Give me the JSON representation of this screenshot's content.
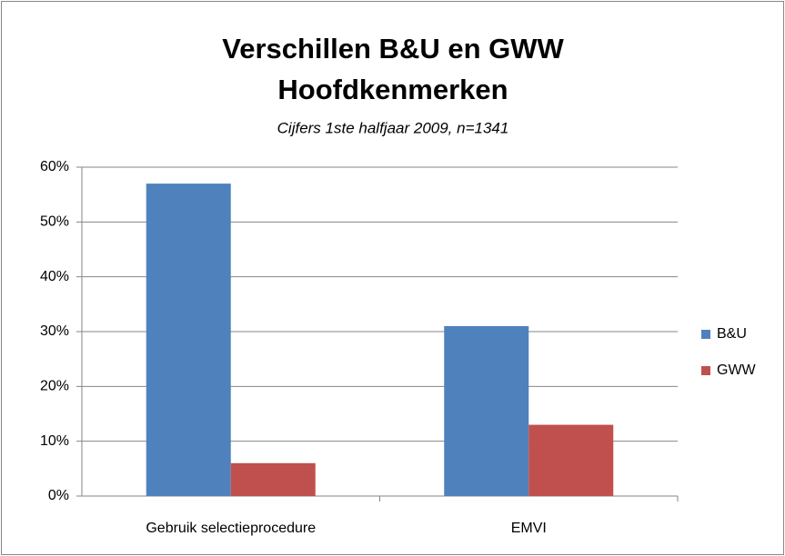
{
  "chart_data": {
    "type": "bar",
    "title": [
      "Verschillen B&U en GWW",
      "Hoofdkenmerken"
    ],
    "subtitle": "Cijfers 1ste halfjaar 2009, n=1341",
    "categories": [
      "Gebruik selectieprocedure",
      "EMVI"
    ],
    "series": [
      {
        "name": "B&U",
        "color": "#4f81bd",
        "values": [
          57,
          31
        ]
      },
      {
        "name": "GWW",
        "color": "#c0504d",
        "values": [
          6,
          13
        ]
      }
    ],
    "ylim": [
      0,
      60
    ],
    "yticks": [
      {
        "value": 0,
        "label": "0%"
      },
      {
        "value": 10,
        "label": "10%"
      },
      {
        "value": 20,
        "label": "20%"
      },
      {
        "value": 30,
        "label": "30%"
      },
      {
        "value": 40,
        "label": "40%"
      },
      {
        "value": 50,
        "label": "50%"
      },
      {
        "value": 60,
        "label": "60%"
      }
    ],
    "grid": true,
    "legend": "right"
  }
}
